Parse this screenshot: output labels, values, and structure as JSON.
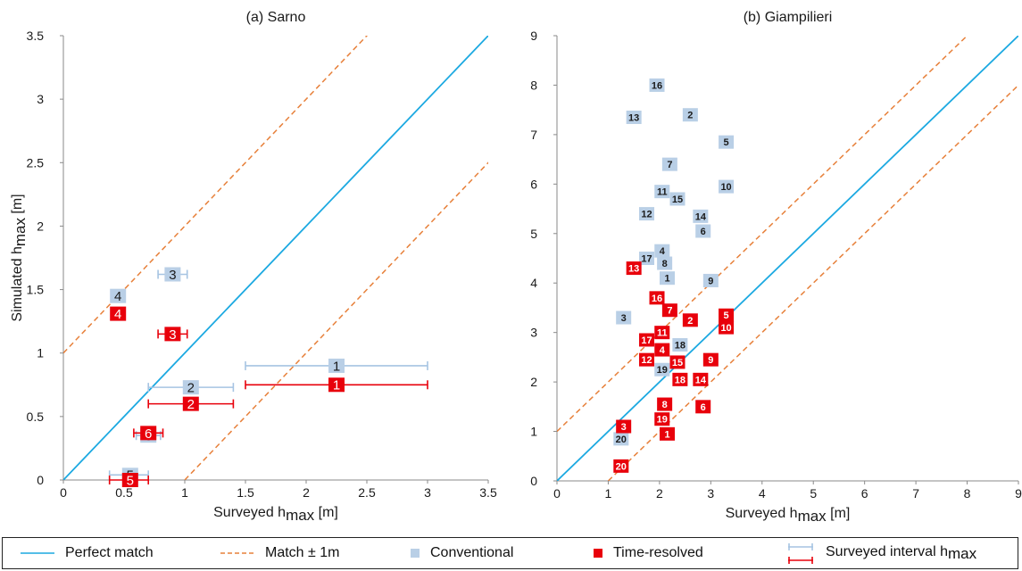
{
  "chart_data": [
    {
      "type": "scatter",
      "title": "(a) Sarno",
      "xlabel": "Surveyed h",
      "xlabel_sub": "max",
      "xlabel_unit": " [m]",
      "ylabel": "Simulated h",
      "ylabel_sub": "max",
      "ylabel_unit": " [m]",
      "xlim": [
        0,
        3.5
      ],
      "ylim": [
        0,
        3.5
      ],
      "xticks": [
        "0",
        "0.5",
        "1",
        "1.5",
        "2",
        "2.5",
        "3",
        "3.5"
      ],
      "yticks": [
        "0",
        "0.5",
        "1",
        "1.5",
        "2",
        "2.5",
        "3",
        "3.5"
      ],
      "series": [
        {
          "name": "Conventional",
          "color": "#b9cfe6",
          "points": [
            {
              "label": "1",
              "x": 2.25,
              "y": 0.9,
              "xmin": 1.5,
              "xmax": 3.0
            },
            {
              "label": "2",
              "x": 1.05,
              "y": 0.73,
              "xmin": 0.7,
              "xmax": 1.4
            },
            {
              "label": "3",
              "x": 0.9,
              "y": 1.62,
              "xmin": 0.78,
              "xmax": 1.02
            },
            {
              "label": "4",
              "x": 0.45,
              "y": 1.45,
              "xmin": 0.4,
              "xmax": 0.5
            },
            {
              "label": "5",
              "x": 0.55,
              "y": 0.04,
              "xmin": 0.38,
              "xmax": 0.7
            },
            {
              "label": "6",
              "x": 0.7,
              "y": 0.35,
              "xmin": 0.6,
              "xmax": 0.8
            }
          ]
        },
        {
          "name": "Time-resolved",
          "color": "#e8000b",
          "points": [
            {
              "label": "1",
              "x": 2.25,
              "y": 0.75,
              "xmin": 1.5,
              "xmax": 3.0
            },
            {
              "label": "2",
              "x": 1.05,
              "y": 0.6,
              "xmin": 0.7,
              "xmax": 1.4
            },
            {
              "label": "3",
              "x": 0.9,
              "y": 1.15,
              "xmin": 0.78,
              "xmax": 1.02
            },
            {
              "label": "4",
              "x": 0.45,
              "y": 1.31,
              "xmin": 0.4,
              "xmax": 0.5
            },
            {
              "label": "5",
              "x": 0.55,
              "y": 0.0,
              "xmin": 0.38,
              "xmax": 0.7
            },
            {
              "label": "6",
              "x": 0.7,
              "y": 0.37,
              "xmin": 0.58,
              "xmax": 0.82
            }
          ]
        }
      ]
    },
    {
      "type": "scatter",
      "title": "(b) Giampilieri",
      "xlabel": "Surveyed h",
      "xlabel_sub": "max",
      "xlabel_unit": " [m]",
      "xlim": [
        0,
        9
      ],
      "ylim": [
        0,
        9
      ],
      "xticks": [
        "0",
        "1",
        "2",
        "3",
        "4",
        "5",
        "6",
        "7",
        "8",
        "9"
      ],
      "yticks": [
        "0",
        "1",
        "2",
        "3",
        "4",
        "5",
        "6",
        "7",
        "8",
        "9"
      ],
      "series": [
        {
          "name": "Conventional",
          "color": "#b9cfe6",
          "points": [
            {
              "label": "16",
              "x": 1.95,
              "y": 8.0
            },
            {
              "label": "13",
              "x": 1.5,
              "y": 7.35
            },
            {
              "label": "2",
              "x": 2.6,
              "y": 7.4
            },
            {
              "label": "5",
              "x": 3.3,
              "y": 6.85
            },
            {
              "label": "7",
              "x": 2.2,
              "y": 6.4
            },
            {
              "label": "10",
              "x": 3.3,
              "y": 5.95
            },
            {
              "label": "11",
              "x": 2.05,
              "y": 5.85
            },
            {
              "label": "15",
              "x": 2.35,
              "y": 5.7
            },
            {
              "label": "12",
              "x": 1.75,
              "y": 5.4
            },
            {
              "label": "14",
              "x": 2.8,
              "y": 5.35
            },
            {
              "label": "6",
              "x": 2.85,
              "y": 5.05
            },
            {
              "label": "4",
              "x": 2.05,
              "y": 4.65
            },
            {
              "label": "17",
              "x": 1.75,
              "y": 4.5
            },
            {
              "label": "8",
              "x": 2.1,
              "y": 4.4
            },
            {
              "label": "1",
              "x": 2.15,
              "y": 4.1
            },
            {
              "label": "9",
              "x": 3.0,
              "y": 4.05
            },
            {
              "label": "3",
              "x": 1.3,
              "y": 3.3
            },
            {
              "label": "18",
              "x": 2.4,
              "y": 2.75
            },
            {
              "label": "19",
              "x": 2.05,
              "y": 2.25
            },
            {
              "label": "20",
              "x": 1.25,
              "y": 0.85
            }
          ]
        },
        {
          "name": "Time-resolved",
          "color": "#e8000b",
          "points": [
            {
              "label": "13",
              "x": 1.5,
              "y": 4.3
            },
            {
              "label": "16",
              "x": 1.95,
              "y": 3.7
            },
            {
              "label": "7",
              "x": 2.2,
              "y": 3.45
            },
            {
              "label": "5",
              "x": 3.3,
              "y": 3.35
            },
            {
              "label": "2",
              "x": 2.6,
              "y": 3.25
            },
            {
              "label": "10",
              "x": 3.3,
              "y": 3.1
            },
            {
              "label": "11",
              "x": 2.05,
              "y": 3.0
            },
            {
              "label": "17",
              "x": 1.75,
              "y": 2.85
            },
            {
              "label": "4",
              "x": 2.05,
              "y": 2.65
            },
            {
              "label": "12",
              "x": 1.75,
              "y": 2.45
            },
            {
              "label": "15",
              "x": 2.35,
              "y": 2.4
            },
            {
              "label": "9",
              "x": 3.0,
              "y": 2.45
            },
            {
              "label": "18",
              "x": 2.4,
              "y": 2.05
            },
            {
              "label": "14",
              "x": 2.8,
              "y": 2.05
            },
            {
              "label": "6",
              "x": 2.85,
              "y": 1.5
            },
            {
              "label": "8",
              "x": 2.1,
              "y": 1.55
            },
            {
              "label": "19",
              "x": 2.05,
              "y": 1.25
            },
            {
              "label": "3",
              "x": 1.3,
              "y": 1.1
            },
            {
              "label": "1",
              "x": 2.15,
              "y": 0.95
            },
            {
              "label": "20",
              "x": 1.25,
              "y": 0.3
            }
          ]
        }
      ]
    }
  ],
  "legend": {
    "perfect_match": "Perfect match",
    "match_pm": "Match ± 1m",
    "conventional": "Conventional",
    "time_resolved": "Time-resolved",
    "surveyed_interval": "Surveyed interval h",
    "surveyed_interval_sub": "max"
  },
  "colors": {
    "perfect_line": "#1ca9e1",
    "match_line": "#e7803a",
    "conventional": "#b9cfe6",
    "conventional_err": "#a6c4e2",
    "time_resolved": "#e8000b",
    "axis": "#8a8a8a",
    "text": "#1a1a1a"
  }
}
